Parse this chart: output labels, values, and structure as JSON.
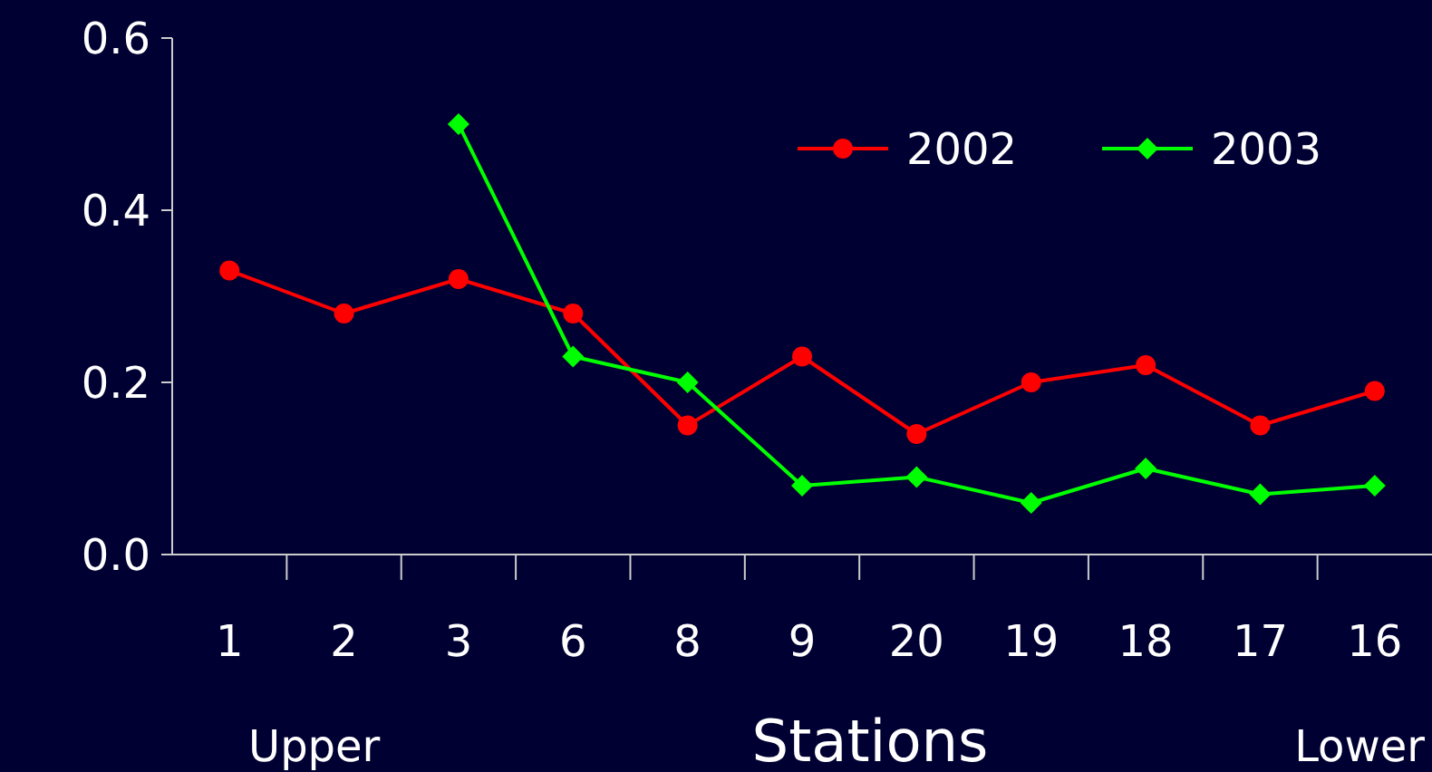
{
  "chart_data": {
    "type": "line",
    "xlabel": "Stations",
    "categories": [
      "1",
      "2",
      "3",
      "6",
      "8",
      "9",
      "20",
      "19",
      "18",
      "17",
      "16"
    ],
    "ylim": [
      0,
      0.6
    ],
    "yticks": [
      {
        "value": 0,
        "label": "0.0"
      },
      {
        "value": 0.2,
        "label": "0.2"
      },
      {
        "value": 0.4,
        "label": "0.4"
      },
      {
        "value": 0.6,
        "label": "0.6"
      }
    ],
    "series": [
      {
        "name": "2002",
        "color": "#ff0000",
        "marker": "circle",
        "values": [
          0.33,
          0.28,
          0.32,
          0.28,
          0.15,
          0.23,
          0.14,
          0.2,
          0.22,
          0.15,
          0.19
        ]
      },
      {
        "name": "2003",
        "color": "#00ff00",
        "marker": "diamond",
        "values": [
          null,
          null,
          0.5,
          0.23,
          0.2,
          0.08,
          0.09,
          0.06,
          0.1,
          0.07,
          0.08
        ]
      }
    ],
    "legend": "top right",
    "grid": false,
    "annotations": [
      "Upper",
      "Lower"
    ]
  }
}
